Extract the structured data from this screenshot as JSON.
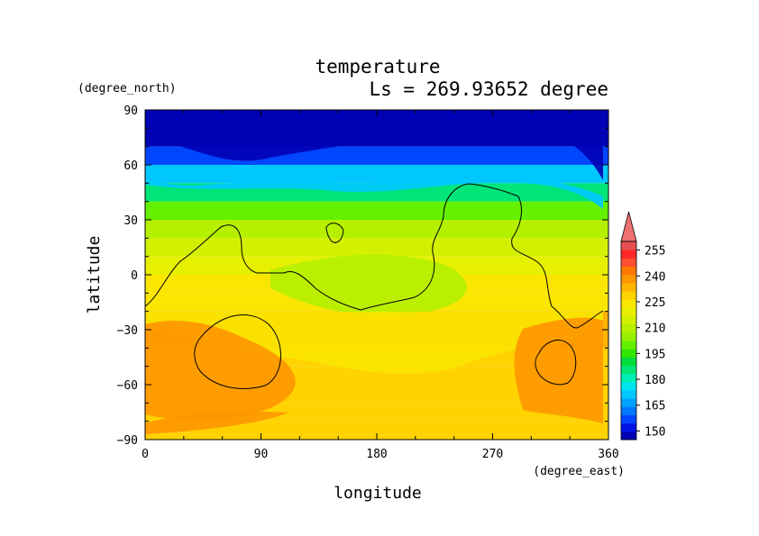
{
  "chart_data": {
    "type": "heatmap",
    "title": "temperature",
    "subtitle": "Ls = 269.93652 degree",
    "xlabel": "longitude",
    "ylabel": "latitude",
    "x_units": "(degree_east)",
    "y_units": "(degree_north)",
    "xlim": [
      0,
      360
    ],
    "ylim": [
      -90,
      90
    ],
    "xticks": [
      0,
      90,
      180,
      270,
      360
    ],
    "yticks": [
      90,
      60,
      30,
      0,
      -30,
      -60,
      -90
    ],
    "xtick_labels": [
      "0",
      "90",
      "180",
      "270",
      "360"
    ],
    "ytick_labels": [
      "90",
      "60",
      "30",
      "0",
      "−30",
      "−60",
      "−90"
    ],
    "lat_band_temperatures": [
      {
        "lat": 85,
        "value": 145
      },
      {
        "lat": 75,
        "value": 145
      },
      {
        "lat": 65,
        "value": 155
      },
      {
        "lat": 55,
        "value": 170
      },
      {
        "lat": 45,
        "value": 185
      },
      {
        "lat": 35,
        "value": 200
      },
      {
        "lat": 25,
        "value": 210
      },
      {
        "lat": 15,
        "value": 215
      },
      {
        "lat": 5,
        "value": 220
      },
      {
        "lat": -5,
        "value": 225
      },
      {
        "lat": -15,
        "value": 228
      },
      {
        "lat": -25,
        "value": 235
      },
      {
        "lat": -35,
        "value": 235
      },
      {
        "lat": -45,
        "value": 232
      },
      {
        "lat": -55,
        "value": 232
      },
      {
        "lat": -65,
        "value": 230
      },
      {
        "lat": -75,
        "value": 232
      },
      {
        "lat": -85,
        "value": 230
      }
    ],
    "colorbar": {
      "labels": [
        "255",
        "240",
        "225",
        "210",
        "195",
        "180",
        "165",
        "150"
      ],
      "levels": [
        145,
        150,
        155,
        160,
        165,
        170,
        175,
        180,
        185,
        190,
        195,
        200,
        205,
        210,
        215,
        220,
        225,
        230,
        235,
        240,
        245,
        250,
        255,
        260
      ],
      "colors": [
        "#0000b4",
        "#0014e6",
        "#0046ff",
        "#0078ff",
        "#00a0ff",
        "#00c8ff",
        "#00e6f0",
        "#00f0b4",
        "#00e678",
        "#00dc3c",
        "#32e600",
        "#64f000",
        "#96f000",
        "#b4f000",
        "#d2f000",
        "#e6f000",
        "#fae600",
        "#ffd200",
        "#ffb400",
        "#ff9600",
        "#ff7800",
        "#ff5032",
        "#ff2828",
        "#e65050"
      ],
      "extend_color": "#f07070"
    }
  }
}
